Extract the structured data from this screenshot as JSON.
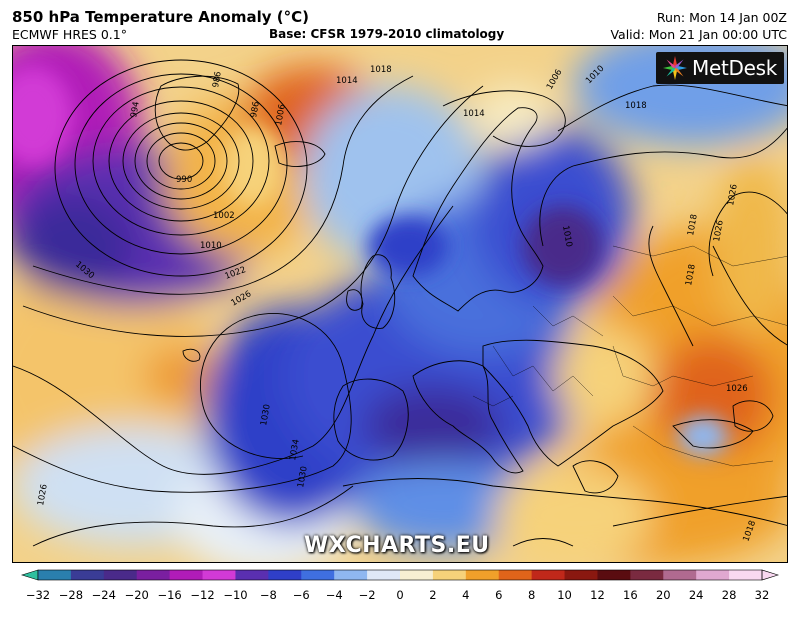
{
  "header": {
    "title": "850 hPa Temperature Anomaly (°C)",
    "model": "ECMWF HRES 0.1°",
    "base": "Base: CFSR 1979-2010 climatology",
    "run": "Run: Mon 14 Jan 00Z",
    "valid": "Valid: Mon 21 Jan 00:00 UTC"
  },
  "logo": {
    "text": "MetDesk",
    "icon": "metdesk-star-icon"
  },
  "watermark": "WXCHARTS.EU",
  "isobars": [
    "994",
    "986",
    "986",
    "1006",
    "1014",
    "1018",
    "1006",
    "1010",
    "1018",
    "990",
    "1002",
    "1010",
    "1022",
    "1026",
    "1030",
    "1030",
    "1034",
    "1030",
    "1026",
    "1014",
    "1010",
    "1018",
    "1026",
    "1026",
    "1018",
    "1026",
    "1018"
  ],
  "colorbar": {
    "ticks": [
      "−32",
      "−28",
      "−24",
      "−20",
      "−16",
      "−12",
      "−10",
      "−8",
      "−6",
      "−4",
      "−2",
      "0",
      "2",
      "4",
      "6",
      "8",
      "10",
      "12",
      "16",
      "20",
      "24",
      "28",
      "32"
    ],
    "colors": [
      "#2fbf9f",
      "#2a7fae",
      "#3a3c96",
      "#4a2a8a",
      "#7a1fa0",
      "#b01cb8",
      "#d23ad6",
      "#5a2fb0",
      "#2f3fc8",
      "#3f6fe0",
      "#8fb7f0",
      "#dfe8f7",
      "#f7efd2",
      "#f6d27a",
      "#f0a02a",
      "#e0641a",
      "#c0281a",
      "#8a1810",
      "#5a0c10",
      "#7a2a40",
      "#b06a90",
      "#e0a8d0",
      "#f8d8f0"
    ]
  }
}
